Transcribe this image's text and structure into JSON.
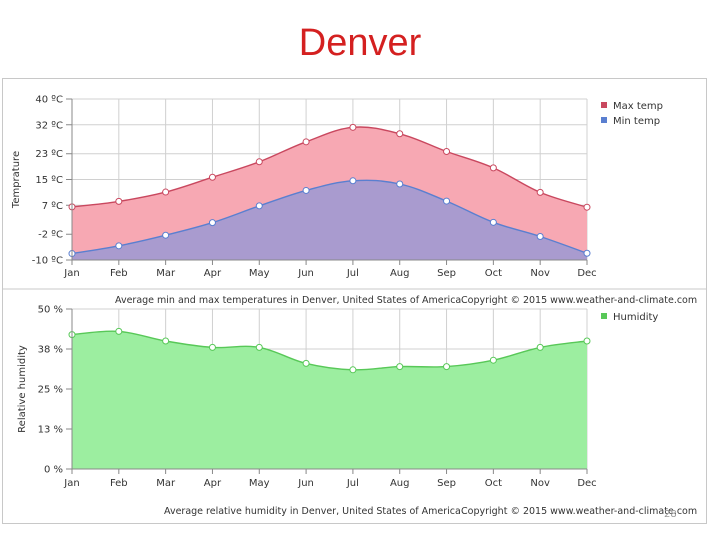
{
  "slide": {
    "title": "Denver",
    "page_number": "28"
  },
  "colors": {
    "title": "#d42020",
    "max_temp_line": "#c9485f",
    "max_temp_fill": "#f7a8b3",
    "min_temp_line": "#5a7fd0",
    "min_temp_fill": "#a99bcf",
    "humidity_line": "#58c858",
    "humidity_fill": "#9ceea0",
    "grid": "#d0d0d0"
  },
  "chart_data": [
    {
      "type": "area",
      "categories": [
        "Jan",
        "Feb",
        "Mar",
        "Apr",
        "May",
        "Jun",
        "Jul",
        "Aug",
        "Sep",
        "Oct",
        "Nov",
        "Dec"
      ],
      "ylabel": "Temprature",
      "y_ticks": [
        -10,
        -2,
        7,
        15,
        23,
        32,
        40
      ],
      "y_tick_labels": [
        "-10 ºC",
        "-2 ºC",
        "7 ºC",
        "15 ºC",
        "23 ºC",
        "32 ºC",
        "40 ºC"
      ],
      "ylim": [
        -10,
        40
      ],
      "grid": true,
      "legend_position": "top-right",
      "series": [
        {
          "name": "Max temp",
          "values": [
            6.5,
            8.2,
            11.1,
            15.7,
            20.5,
            26.7,
            31.2,
            29.2,
            23.7,
            18.6,
            11.0,
            6.4
          ]
        },
        {
          "name": "Min temp",
          "values": [
            -8.0,
            -5.6,
            -2.3,
            1.6,
            6.8,
            11.6,
            14.6,
            13.6,
            8.3,
            1.7,
            -2.7,
            -7.9
          ]
        }
      ],
      "caption": "Average min and max temperatures in Denver, United States of America",
      "copyright": "Copyright © 2015 www.weather-and-climate.com"
    },
    {
      "type": "area",
      "categories": [
        "Jan",
        "Feb",
        "Mar",
        "Apr",
        "May",
        "Jun",
        "Jul",
        "Aug",
        "Sep",
        "Oct",
        "Nov",
        "Dec"
      ],
      "ylabel": "Relative humidity",
      "y_ticks": [
        0,
        12.5,
        25,
        37.5,
        50
      ],
      "y_tick_labels": [
        "0 %",
        "13 %",
        "25 %",
        "38 %",
        "50 %"
      ],
      "ylim": [
        0,
        50
      ],
      "grid": true,
      "legend_position": "top-right",
      "series": [
        {
          "name": "Humidity",
          "values": [
            42.0,
            43.0,
            40.0,
            38.0,
            38.0,
            33.0,
            31.0,
            32.0,
            32.0,
            34.0,
            38.0,
            40.0
          ]
        }
      ],
      "caption": "Average relative humidity in Denver, United States of America",
      "copyright": "Copyright © 2015 www.weather-and-climate.com"
    }
  ]
}
